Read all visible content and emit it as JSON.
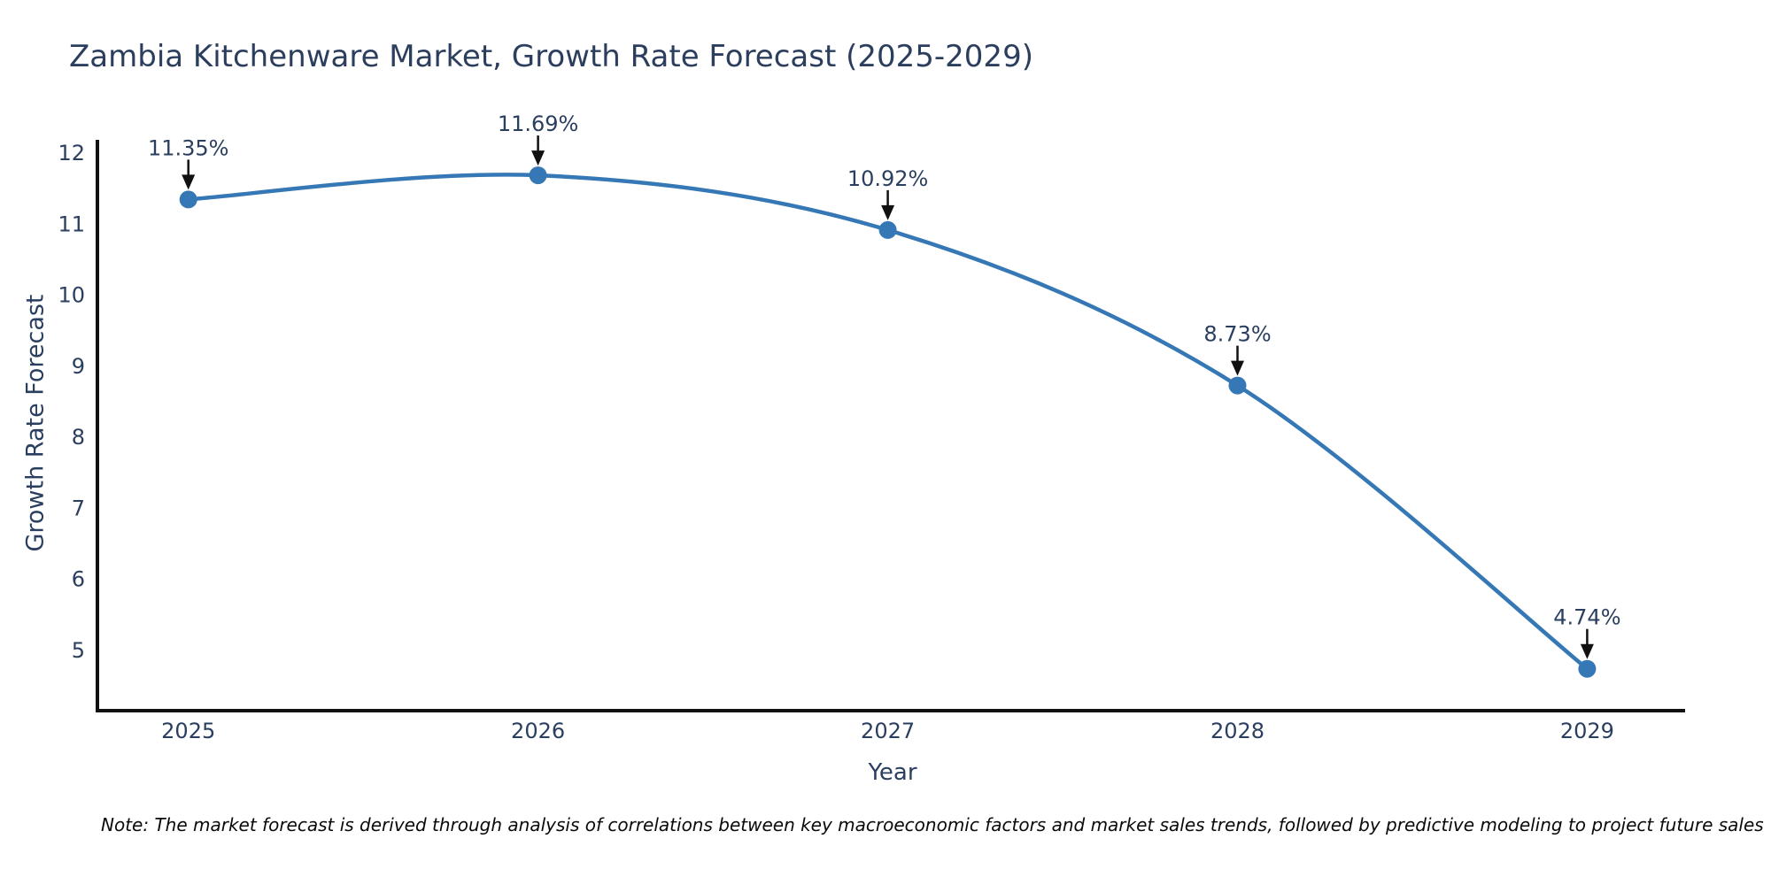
{
  "note": "Note: The market forecast is derived through analysis of correlations between key macroeconomic factors and market sales trends, followed by predictive modeling to project future sales",
  "chart_data": {
    "type": "line",
    "title": "Zambia Kitchenware Market, Growth Rate Forecast (2025-2029)",
    "xlabel": "Year",
    "ylabel": "Growth Rate Forecast",
    "x": [
      2025,
      2026,
      2027,
      2028,
      2029
    ],
    "values": [
      11.35,
      11.69,
      10.92,
      8.73,
      4.74
    ],
    "point_labels": [
      "11.35%",
      "11.69%",
      "10.92%",
      "8.73%",
      "4.74%"
    ],
    "yticks": [
      5,
      6,
      7,
      8,
      9,
      10,
      11,
      12
    ],
    "xlim": [
      2024.74,
      2029.28
    ],
    "ylim": [
      4.15,
      12.19
    ],
    "grid": false,
    "legend_position": "none",
    "line_shape": "spline",
    "colors": {
      "line": "#3578b5",
      "marker": "#3578b5",
      "axis": "#111111",
      "tick_text": "#2a3f5f",
      "title_text": "#2c3e5d",
      "annotation_text": "#2a3f5f",
      "arrow": "#111111",
      "note_text": "#0a0a0a",
      "background": "#ffffff"
    }
  }
}
